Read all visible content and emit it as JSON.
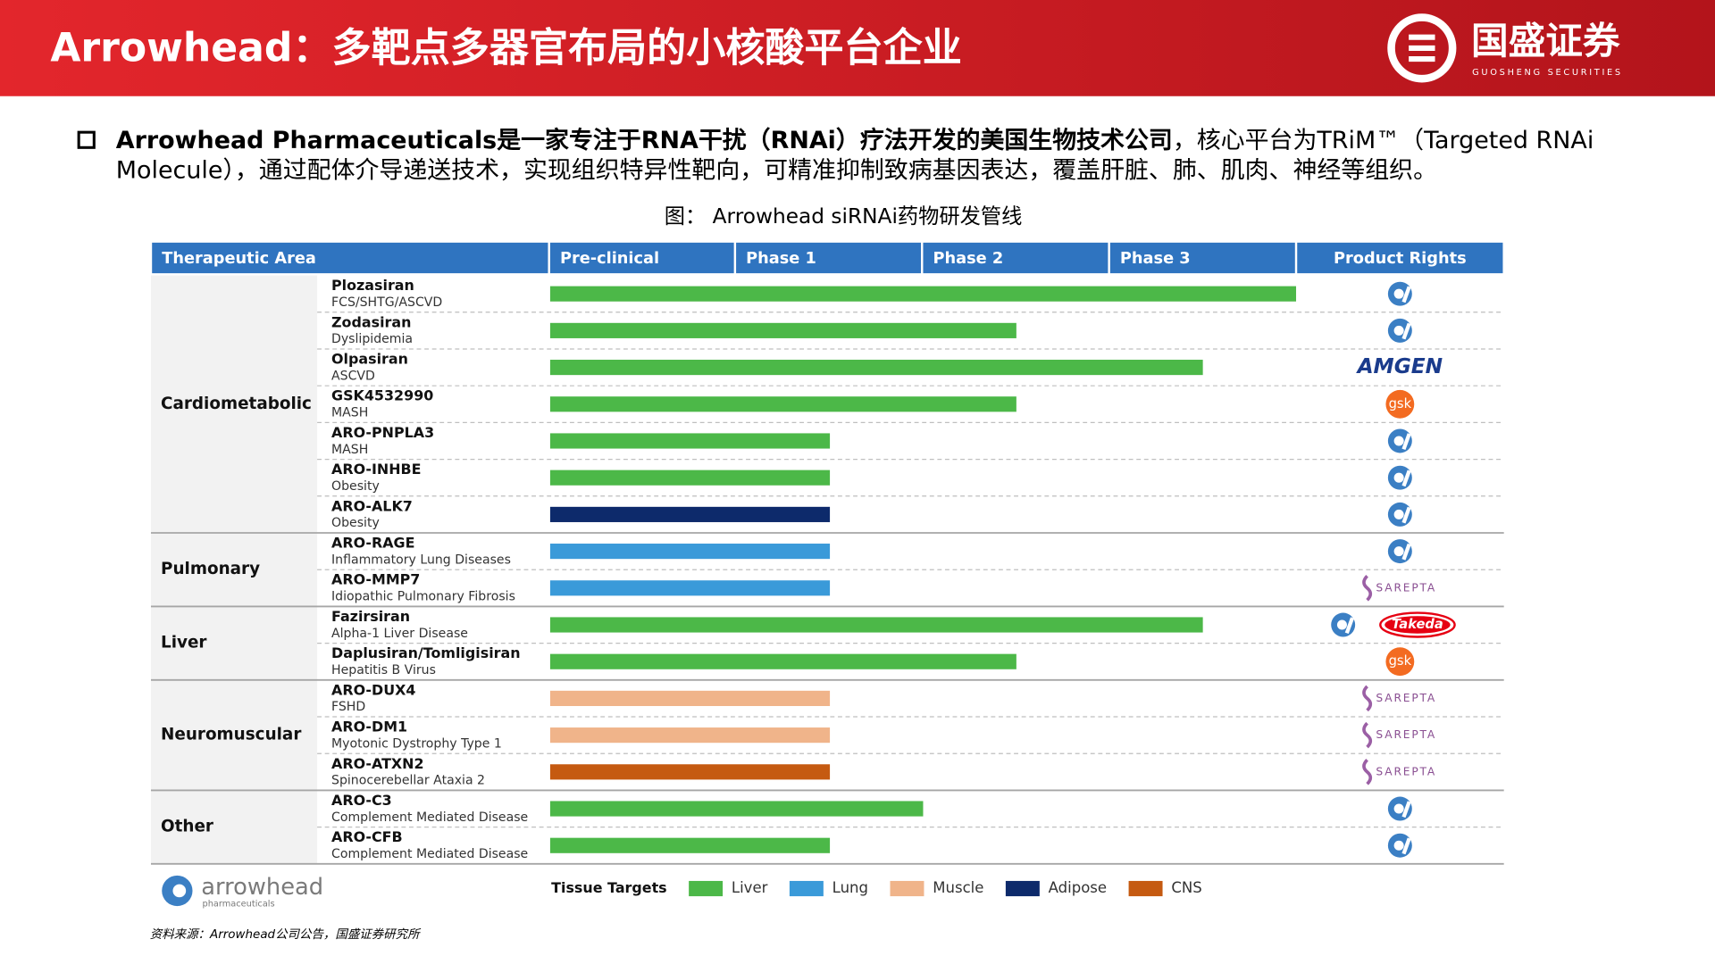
{
  "header": {
    "title": "Arrowhead：多靶点多器官布局的小核酸平台企业",
    "logo_name": "国盛证券",
    "logo_sub": "GUOSHENG SECURITIES"
  },
  "intro": {
    "bold": "Arrowhead  Pharmaceuticals是一家专注于RNA干扰（RNAi）疗法开发的美国生物技术公司",
    "rest": "，核心平台为TRiM™（Targeted  RNAi",
    "line2": "Molecule），通过配体介导递送技术，实现组织特异性靶向，可精准抑制致病基因表达，覆盖肝脏、肺、肌肉、神经等组织。"
  },
  "figure_caption": "图： Arrowhead siRNAi药物研发管线",
  "pipeline": {
    "columns": [
      "Therapeutic Area",
      "Pre-clinical",
      "Phase 1",
      "Phase 2",
      "Phase 3",
      "Product Rights"
    ],
    "groups": [
      {
        "name": "Cardiometabolic",
        "rows": [
          {
            "drug": "Plozasiran",
            "indication": "FCS/SHTG/ASCVD",
            "progress": 4,
            "tissue": 0,
            "retained": true,
            "partners": []
          },
          {
            "drug": "Zodasiran",
            "indication": "Dyslipidemia",
            "progress": 2.5,
            "tissue": 0,
            "retained": true,
            "partners": []
          },
          {
            "drug": "Olpasiran",
            "indication": "ASCVD",
            "progress": 3.5,
            "tissue": 0,
            "retained": false,
            "partners": [
              "AMGEN"
            ]
          },
          {
            "drug": "GSK4532990",
            "indication": "MASH",
            "progress": 2.5,
            "tissue": 0,
            "retained": false,
            "partners": [
              "gsk"
            ]
          },
          {
            "drug": "ARO-PNPLA3",
            "indication": "MASH",
            "progress": 1.5,
            "tissue": 0,
            "retained": true,
            "partners": []
          },
          {
            "drug": "ARO-INHBE",
            "indication": "Obesity",
            "progress": 1.5,
            "tissue": 0,
            "retained": true,
            "partners": []
          },
          {
            "drug": "ARO-ALK7",
            "indication": "Obesity",
            "progress": 1.5,
            "tissue": 3,
            "retained": true,
            "partners": []
          }
        ]
      },
      {
        "name": "Pulmonary",
        "rows": [
          {
            "drug": "ARO-RAGE",
            "indication": "Inflammatory Lung Diseases",
            "progress": 1.5,
            "tissue": 1,
            "retained": true,
            "partners": []
          },
          {
            "drug": "ARO-MMP7",
            "indication": "Idiopathic Pulmonary Fibrosis",
            "progress": 1.5,
            "tissue": 1,
            "retained": false,
            "partners": [
              "SAREPTA"
            ]
          }
        ]
      },
      {
        "name": "Liver",
        "rows": [
          {
            "drug": "Fazirsiran",
            "indication": "Alpha-1 Liver Disease",
            "progress": 3.5,
            "tissue": 0,
            "retained": true,
            "partners": [
              "Takeda"
            ]
          },
          {
            "drug": "Daplusiran/Tomligisiran",
            "indication": "Hepatitis B Virus",
            "progress": 2.5,
            "tissue": 0,
            "retained": false,
            "partners": [
              "gsk"
            ]
          }
        ]
      },
      {
        "name": "Neuromuscular",
        "rows": [
          {
            "drug": "ARO-DUX4",
            "indication": "FSHD",
            "progress": 1.5,
            "tissue": 2,
            "retained": false,
            "partners": [
              "SAREPTA"
            ]
          },
          {
            "drug": "ARO-DM1",
            "indication": "Myotonic Dystrophy Type 1",
            "progress": 1.5,
            "tissue": 2,
            "retained": false,
            "partners": [
              "SAREPTA"
            ]
          },
          {
            "drug": "ARO-ATXN2",
            "indication": "Spinocerebellar Ataxia 2",
            "progress": 1.5,
            "tissue": 4,
            "retained": false,
            "partners": [
              "SAREPTA"
            ]
          }
        ]
      },
      {
        "name": "Other",
        "rows": [
          {
            "drug": "ARO-C3",
            "indication": "Complement Mediated Disease",
            "progress": 2,
            "tissue": 0,
            "retained": true,
            "partners": []
          },
          {
            "drug": "ARO-CFB",
            "indication": "Complement Mediated Disease",
            "progress": 1.5,
            "tissue": 0,
            "retained": true,
            "partners": []
          }
        ]
      }
    ],
    "legend": {
      "title": "Tissue Targets",
      "tissues": [
        {
          "name": "Liver",
          "color": "#4cb848"
        },
        {
          "name": "Lung",
          "color": "#3a9ad9"
        },
        {
          "name": "Muscle",
          "color": "#f0b48a"
        },
        {
          "name": "Adipose",
          "color": "#0d2a6b"
        },
        {
          "name": "CNS",
          "color": "#c55a11"
        }
      ]
    }
  },
  "company_logo": {
    "name": "arrowhead",
    "sub": "pharmaceuticals"
  },
  "source": "资料来源：Arrowhead公司公告，国盛证券研究所"
}
